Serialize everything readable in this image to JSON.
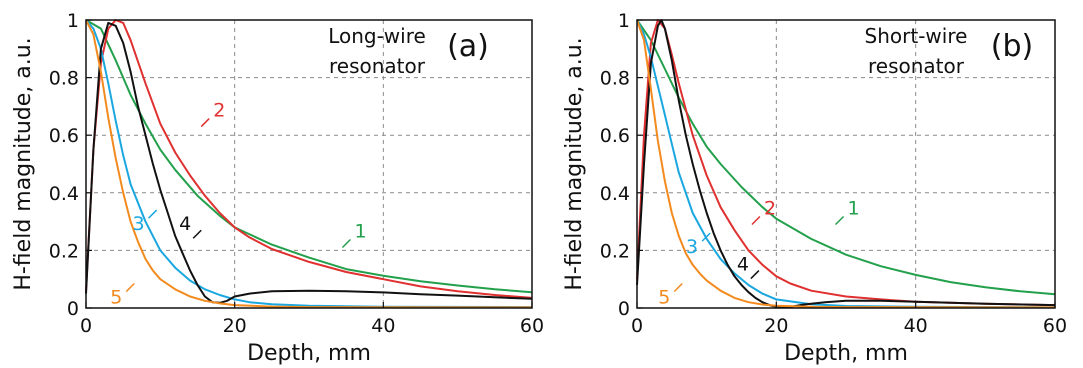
{
  "chart_data": [
    {
      "type": "line",
      "panel_tag": "(a)",
      "annotation": [
        "Long-wire",
        "resonator"
      ],
      "xlabel": "Depth, mm",
      "ylabel": "H-field magnitude, a.u.",
      "xlim": [
        0,
        60
      ],
      "ylim": [
        0,
        1
      ],
      "x_ticks": [
        "0",
        "20",
        "40",
        "60"
      ],
      "y_ticks": [
        "0",
        "0.2",
        "0.4",
        "0.6",
        "0.8",
        "1"
      ],
      "grid": true,
      "series": [
        {
          "name": "1",
          "color": "#22a04b",
          "x": [
            0,
            2,
            4,
            6,
            8,
            10,
            12,
            15,
            18,
            20,
            25,
            30,
            35,
            40,
            45,
            50,
            55,
            60
          ],
          "y": [
            1.0,
            0.97,
            0.86,
            0.74,
            0.64,
            0.55,
            0.48,
            0.39,
            0.32,
            0.28,
            0.22,
            0.175,
            0.135,
            0.112,
            0.093,
            0.078,
            0.065,
            0.055
          ]
        },
        {
          "name": "2",
          "color": "#e03030",
          "x": [
            0,
            1,
            2,
            3,
            4,
            5,
            6,
            8,
            10,
            12,
            14,
            16,
            18,
            20,
            22,
            25,
            30,
            35,
            40,
            45,
            50,
            55,
            60
          ],
          "y": [
            0.06,
            0.55,
            0.85,
            0.97,
            1.0,
            0.99,
            0.93,
            0.78,
            0.64,
            0.54,
            0.46,
            0.39,
            0.33,
            0.28,
            0.245,
            0.205,
            0.16,
            0.125,
            0.1,
            0.075,
            0.058,
            0.045,
            0.035
          ]
        },
        {
          "name": "3",
          "color": "#1aa7e0",
          "x": [
            0,
            1,
            2,
            3,
            4,
            5,
            6,
            8,
            10,
            12,
            14,
            16,
            18,
            20,
            22,
            25,
            30,
            40,
            60
          ],
          "y": [
            1.0,
            0.97,
            0.9,
            0.78,
            0.65,
            0.53,
            0.43,
            0.3,
            0.2,
            0.14,
            0.095,
            0.065,
            0.045,
            0.03,
            0.02,
            0.013,
            0.008,
            0.004,
            0.003
          ]
        },
        {
          "name": "4",
          "color": "#111111",
          "x": [
            0,
            1,
            2,
            3,
            4,
            5,
            6,
            7,
            8,
            9,
            10,
            11,
            12,
            13,
            14,
            15,
            16,
            17,
            18,
            19,
            20,
            22,
            25,
            30,
            35,
            40,
            45,
            50,
            55,
            60
          ],
          "y": [
            0.05,
            0.55,
            0.9,
            0.99,
            0.98,
            0.92,
            0.82,
            0.7,
            0.6,
            0.5,
            0.41,
            0.33,
            0.25,
            0.19,
            0.13,
            0.08,
            0.04,
            0.02,
            0.018,
            0.025,
            0.04,
            0.05,
            0.058,
            0.06,
            0.058,
            0.054,
            0.048,
            0.043,
            0.037,
            0.032
          ]
        },
        {
          "name": "5",
          "color": "#f28a1e",
          "x": [
            0,
            1,
            2,
            3,
            4,
            5,
            6,
            7,
            8,
            9,
            10,
            12,
            14,
            16,
            18,
            20,
            25,
            30,
            60
          ],
          "y": [
            1.0,
            0.95,
            0.82,
            0.66,
            0.52,
            0.4,
            0.3,
            0.23,
            0.17,
            0.13,
            0.1,
            0.065,
            0.04,
            0.025,
            0.016,
            0.01,
            0.005,
            0.003,
            0.002
          ]
        }
      ],
      "curve_labels": [
        {
          "text": "1",
          "series": "1",
          "x": 34.5,
          "y": 0.21
        },
        {
          "text": "2",
          "series": "2",
          "x": 15.5,
          "y": 0.63
        },
        {
          "text": "3",
          "series": "3",
          "x": 9.5,
          "y": 0.34
        },
        {
          "text": "4",
          "series": "4",
          "x": 15.5,
          "y": 0.27
        },
        {
          "text": "5",
          "series": "5",
          "x": 6.5,
          "y": 0.085
        }
      ]
    },
    {
      "type": "line",
      "panel_tag": "(b)",
      "annotation": [
        "Short-wire",
        "resonator"
      ],
      "xlabel": "Depth, mm",
      "ylabel": "H-field magnitude, a.u.",
      "xlim": [
        0,
        60
      ],
      "ylim": [
        0,
        1
      ],
      "x_ticks": [
        "0",
        "20",
        "40",
        "60"
      ],
      "y_ticks": [
        "0",
        "0.2",
        "0.4",
        "0.6",
        "0.8",
        "1"
      ],
      "grid": true,
      "series": [
        {
          "name": "1",
          "color": "#22a04b",
          "x": [
            0,
            2,
            4,
            6,
            8,
            10,
            12,
            15,
            18,
            20,
            25,
            30,
            35,
            40,
            45,
            50,
            55,
            60
          ],
          "y": [
            1.0,
            0.93,
            0.83,
            0.73,
            0.64,
            0.56,
            0.5,
            0.42,
            0.35,
            0.31,
            0.24,
            0.185,
            0.145,
            0.115,
            0.09,
            0.072,
            0.058,
            0.048
          ]
        },
        {
          "name": "2",
          "color": "#e03030",
          "x": [
            0,
            1,
            2,
            3,
            4,
            5,
            6,
            8,
            10,
            12,
            14,
            16,
            18,
            20,
            22,
            25,
            30,
            35,
            40,
            45,
            50,
            60
          ],
          "y": [
            0.1,
            0.6,
            0.92,
            1.0,
            0.97,
            0.88,
            0.78,
            0.6,
            0.46,
            0.35,
            0.27,
            0.2,
            0.15,
            0.11,
            0.085,
            0.06,
            0.04,
            0.03,
            0.022,
            0.018,
            0.015,
            0.01
          ]
        },
        {
          "name": "3",
          "color": "#1aa7e0",
          "x": [
            0,
            1,
            2,
            3,
            4,
            5,
            6,
            8,
            10,
            12,
            14,
            16,
            18,
            20,
            25,
            30,
            40,
            60
          ],
          "y": [
            1.0,
            0.95,
            0.87,
            0.77,
            0.67,
            0.57,
            0.47,
            0.33,
            0.24,
            0.17,
            0.12,
            0.08,
            0.05,
            0.03,
            0.013,
            0.007,
            0.004,
            0.002
          ]
        },
        {
          "name": "4",
          "color": "#111111",
          "x": [
            0,
            1,
            2,
            3,
            3.5,
            4,
            5,
            6,
            7,
            8,
            9,
            10,
            11,
            12,
            13,
            14,
            15,
            16,
            17,
            18,
            19,
            20,
            21,
            22,
            24,
            27,
            30,
            35,
            40,
            50,
            60
          ],
          "y": [
            0.08,
            0.5,
            0.85,
            0.98,
            1.0,
            0.97,
            0.86,
            0.72,
            0.6,
            0.5,
            0.41,
            0.33,
            0.26,
            0.2,
            0.15,
            0.11,
            0.08,
            0.055,
            0.035,
            0.02,
            0.01,
            0.004,
            0.002,
            0.004,
            0.012,
            0.02,
            0.025,
            0.025,
            0.022,
            0.015,
            0.01
          ]
        },
        {
          "name": "5",
          "color": "#f28a1e",
          "x": [
            0,
            1,
            2,
            3,
            4,
            5,
            6,
            7,
            8,
            9,
            10,
            12,
            14,
            16,
            18,
            20,
            25,
            30,
            60
          ],
          "y": [
            1.0,
            0.93,
            0.76,
            0.58,
            0.44,
            0.33,
            0.25,
            0.19,
            0.15,
            0.12,
            0.095,
            0.06,
            0.035,
            0.02,
            0.012,
            0.008,
            0.004,
            0.003,
            0.002
          ]
        }
      ],
      "curve_labels": [
        {
          "text": "1",
          "series": "1",
          "x": 28.5,
          "y": 0.29
        },
        {
          "text": "2",
          "series": "2",
          "x": 16.5,
          "y": 0.29
        },
        {
          "text": "3",
          "series": "3",
          "x": 10.5,
          "y": 0.26
        },
        {
          "text": "4",
          "series": "4",
          "x": 17.5,
          "y": 0.13
        },
        {
          "text": "5",
          "series": "5",
          "x": 6.5,
          "y": 0.085
        }
      ]
    }
  ]
}
